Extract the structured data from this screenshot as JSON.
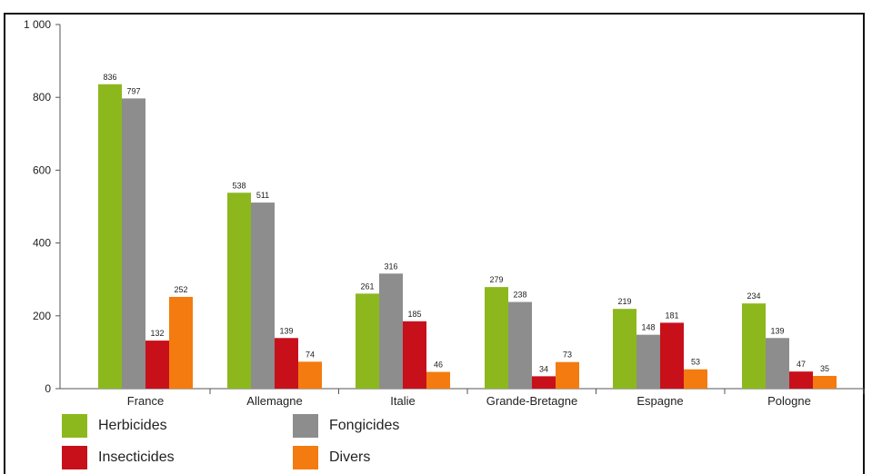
{
  "chart_data": {
    "type": "bar",
    "categories": [
      "France",
      "Allemagne",
      "Italie",
      "Grande-Bretagne",
      "Espagne",
      "Pologne"
    ],
    "series": [
      {
        "name": "Herbicides",
        "color": "#8cb81e",
        "values": [
          836,
          538,
          261,
          279,
          219,
          234
        ]
      },
      {
        "name": "Fongicides",
        "color": "#8d8d8d",
        "values": [
          797,
          511,
          316,
          238,
          148,
          139
        ]
      },
      {
        "name": "Insecticides",
        "color": "#c8101b",
        "values": [
          132,
          139,
          185,
          34,
          181,
          47
        ]
      },
      {
        "name": "Divers",
        "color": "#f47b0f",
        "values": [
          252,
          74,
          46,
          73,
          53,
          35
        ]
      }
    ],
    "ylim": [
      0,
      1000
    ],
    "yticks": [
      0,
      200,
      400,
      600,
      800,
      1000
    ],
    "ytick_labels": [
      "0",
      "200",
      "400",
      "600",
      "800",
      "1 000"
    ],
    "grid": false,
    "legend_position": "bottom"
  }
}
